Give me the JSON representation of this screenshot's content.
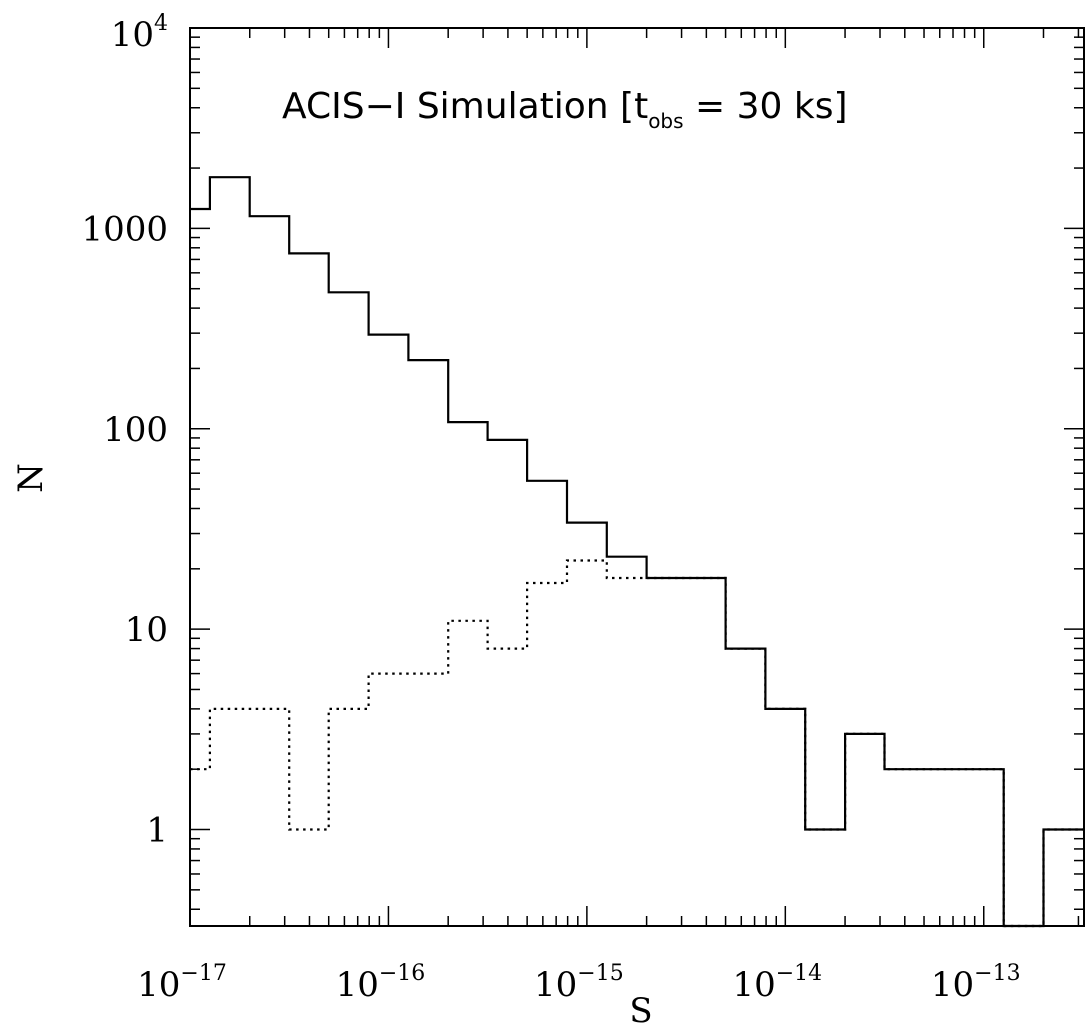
{
  "chart_data": {
    "type": "line",
    "step": true,
    "title_parts": [
      "ACIS−I Simulation [t",
      "obs",
      " = 30 ks]"
    ],
    "xlabel": "S",
    "ylabel": "N",
    "xscale": "log",
    "yscale": "log",
    "xlim": [
      1e-17,
      3.2e-13
    ],
    "ylim": [
      0.33,
      10000
    ],
    "x_ticks": [
      {
        "value": 1e-17,
        "base": "10",
        "exp": "−17"
      },
      {
        "value": 1e-16,
        "base": "10",
        "exp": "−16"
      },
      {
        "value": 1e-15,
        "base": "10",
        "exp": "−15"
      },
      {
        "value": 1e-14,
        "base": "10",
        "exp": "−14"
      },
      {
        "value": 1e-13,
        "base": "10",
        "exp": "−13"
      }
    ],
    "y_ticks": [
      {
        "value": 1,
        "label": "1"
      },
      {
        "value": 10,
        "label": "10"
      },
      {
        "value": 100,
        "label": "100"
      },
      {
        "value": 1000,
        "label": "1000"
      },
      {
        "value": 10000,
        "base": "10",
        "exp": "4"
      }
    ],
    "bin_edges": [
      1e-17,
      1.26e-17,
      2e-17,
      3.16e-17,
      5e-17,
      7.94e-17,
      1.26e-16,
      2e-16,
      3.16e-16,
      5e-16,
      7.94e-16,
      1.26e-15,
      2e-15,
      3.16e-15,
      5e-15,
      7.94e-15,
      1.26e-14,
      2e-14,
      3.16e-14,
      5e-14,
      7.94e-14,
      1.26e-13,
      2e-13
    ],
    "series": [
      {
        "style": "solid",
        "values": [
          1250,
          1800,
          1150,
          750,
          480,
          295,
          220,
          108,
          88,
          55,
          34,
          23,
          18,
          18,
          8,
          4,
          1,
          3,
          2,
          2,
          2,
          0,
          1
        ]
      },
      {
        "style": "dotted",
        "values": [
          2,
          4,
          4,
          1,
          4,
          6,
          6,
          11,
          8,
          17,
          22,
          18,
          18,
          18,
          8,
          4,
          1,
          3,
          2,
          2,
          2,
          0,
          1
        ]
      }
    ]
  }
}
